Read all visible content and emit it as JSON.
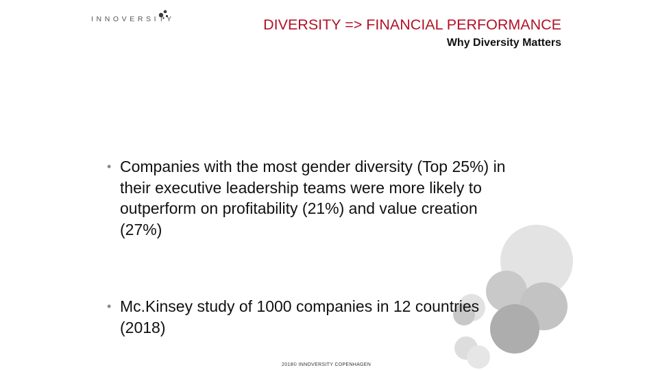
{
  "logo": {
    "text": "INNOVERSITY",
    "icon": "dots-logo-icon"
  },
  "header": {
    "title": "DIVERSITY => FINANCIAL PERFORMANCE",
    "subtitle": "Why Diversity Matters"
  },
  "bullets": [
    {
      "text": "Companies with the most gender diversity (Top 25%) in their executive leadership teams were more likely to outperform on profitability (21%) and value creation (27%)"
    },
    {
      "text": "Mc.Kinsey study of 1000 companies in 12 countries (2018)"
    }
  ],
  "footer": {
    "text": "2018© INNOVERSITY COPENHAGEN"
  },
  "colors": {
    "title": "#b11226",
    "circle_dark": "#b3b3b3",
    "circle_light": "#e0e0e0"
  }
}
